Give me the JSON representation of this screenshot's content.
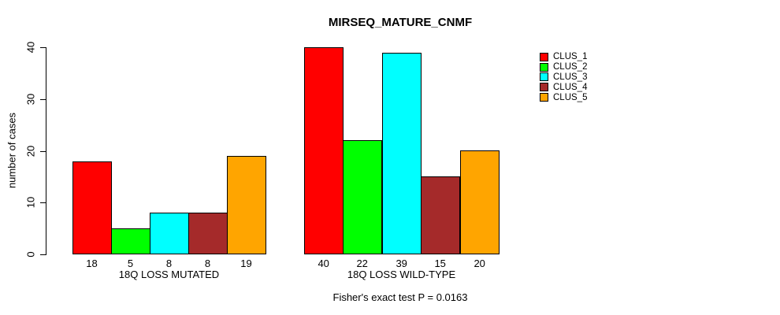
{
  "chart_data": {
    "type": "bar",
    "title": "MIRSEQ_MATURE_CNMF",
    "xlabel": "",
    "ylabel": "number of cases",
    "ylim": [
      0,
      40
    ],
    "yticks": [
      0,
      10,
      20,
      30,
      40
    ],
    "grid": false,
    "legend_position": "top-right",
    "bar_value_labels": true,
    "categories": [
      "18Q LOSS MUTATED",
      "18Q LOSS WILD-TYPE"
    ],
    "series": [
      {
        "name": "CLUS_1",
        "color": "#FF0000",
        "values": [
          18,
          40
        ]
      },
      {
        "name": "CLUS_2",
        "color": "#00FF00",
        "values": [
          5,
          22
        ]
      },
      {
        "name": "CLUS_3",
        "color": "#00FFFF",
        "values": [
          8,
          39
        ]
      },
      {
        "name": "CLUS_4",
        "color": "#A52A2A",
        "values": [
          8,
          15
        ]
      },
      {
        "name": "CLUS_5",
        "color": "#FFA500",
        "values": [
          19,
          20
        ]
      }
    ],
    "footnote": "Fisher's exact test P = 0.0163"
  }
}
